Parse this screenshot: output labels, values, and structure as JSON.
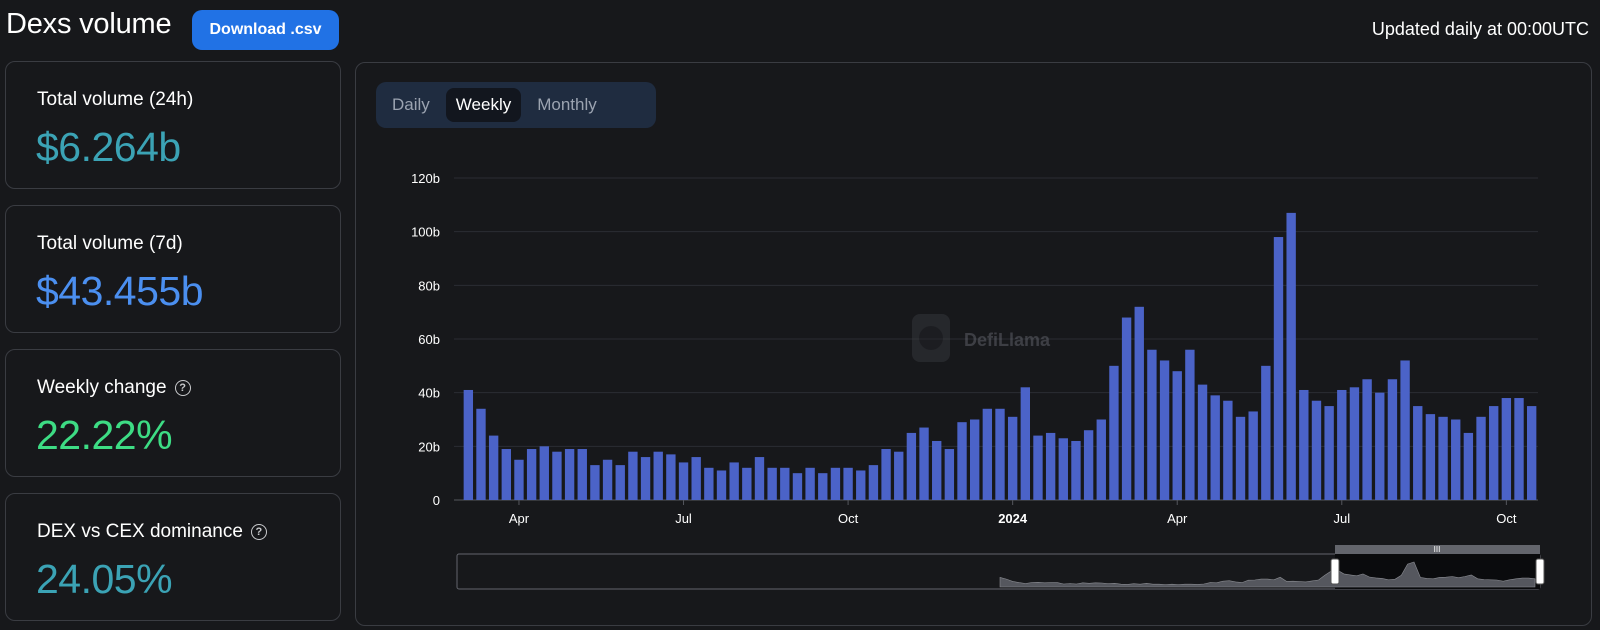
{
  "header": {
    "title": "Dexs volume",
    "download_label": "Download .csv",
    "updated_text": "Updated daily at 00:00UTC"
  },
  "cards": [
    {
      "label": "Total volume (24h)",
      "value": "$6.264b",
      "color": "#3ba3b5",
      "help": false
    },
    {
      "label": "Total volume (7d)",
      "value": "$43.455b",
      "color": "#4b8ff0",
      "help": false
    },
    {
      "label": "Weekly change",
      "value": "22.22%",
      "color": "#3ddc84",
      "help": true
    },
    {
      "label": "DEX vs CEX dominance",
      "value": "24.05%",
      "color": "#3ba3b5",
      "help": true
    }
  ],
  "tabs": {
    "daily": "Daily",
    "weekly": "Weekly",
    "monthly": "Monthly",
    "active": "weekly"
  },
  "watermark": "DefiLlama",
  "colors": {
    "bar": "#4b63c8",
    "accent": "#2172e5",
    "background": "#17181b",
    "grid": "#2b2d33"
  },
  "chart_data": {
    "type": "bar",
    "x_unit": "week",
    "y_tick_labels": [
      "0",
      "20b",
      "40b",
      "60b",
      "80b",
      "100b",
      "120b"
    ],
    "ylim": [
      0,
      120
    ],
    "y_unit": "billions USD",
    "x_tick_labels": [
      "Apr",
      "Jul",
      "Oct",
      "2024",
      "Apr",
      "Jul",
      "Oct"
    ],
    "x_tick_bold": [
      false,
      false,
      false,
      true,
      false,
      false,
      false
    ],
    "x_tick_week_index": [
      4,
      17,
      30,
      43,
      56,
      69,
      82
    ],
    "grid": true,
    "series": [
      {
        "values": [
          41,
          34,
          24,
          19,
          15,
          19,
          20,
          18,
          19,
          19,
          13,
          15,
          13,
          18,
          16,
          18,
          17,
          14,
          16,
          12,
          11,
          14,
          12,
          16,
          12,
          12,
          10,
          12,
          10,
          12,
          12,
          11,
          13,
          19,
          18,
          25,
          27,
          22,
          19,
          29,
          30,
          34,
          34,
          31,
          42,
          24,
          25,
          23,
          22,
          26,
          30,
          50,
          68,
          72,
          56,
          52,
          48,
          56,
          43,
          39,
          37,
          31,
          33,
          50,
          98,
          107,
          41,
          37,
          35,
          41,
          42,
          45,
          40,
          45,
          52,
          35,
          32,
          31,
          30,
          25,
          31,
          35,
          38,
          38,
          35
        ]
      }
    ]
  }
}
